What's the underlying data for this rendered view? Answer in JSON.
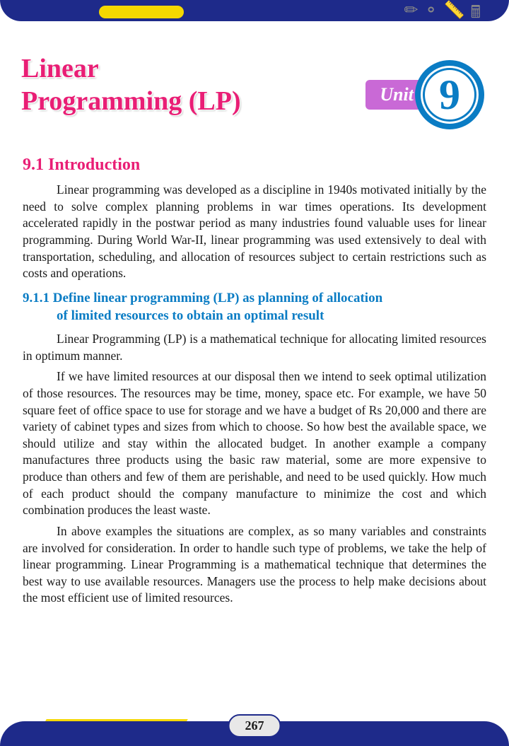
{
  "header": {
    "chapter_title_line1": "Linear",
    "chapter_title_line2": "Programming (LP)",
    "unit_label": "Unit",
    "unit_number": "9"
  },
  "sections": {
    "intro_heading": "9.1 Introduction",
    "intro_para": "Linear programming was developed as a discipline in 1940s motivated initially by the need to solve complex planning problems in war times operations. Its development accelerated rapidly in the postwar period as many industries found valuable uses for linear programming. During World War-II, linear programming was used extensively to deal with transportation, scheduling, and allocation of resources subject to certain restrictions such as costs and operations.",
    "sub_heading_line1": "9.1.1 Define linear programming (LP) as planning of allocation",
    "sub_heading_line2": "of limited resources to obtain an optimal result",
    "para2": "Linear Programming (LP) is a mathematical technique for allocating limited resources in optimum manner.",
    "para3": "If we have limited resources at our disposal then we intend to seek optimal utilization of those resources. The resources may be time, money, space etc. For example, we have 50 square feet of office space to use for storage and we have a budget of Rs 20,000 and there are variety of cabinet types and sizes from which to choose. So how best the available space, we should utilize and stay within the allocated budget. In another example a company manufactures three products using the basic raw material, some are more expensive to produce than others and few of them are perishable, and need to be used quickly. How much of each product should the company manufacture to minimize the cost and which combination produces the least waste.",
    "para4": "In above examples the situations are complex, as so many variables and constraints are involved for consideration. In order to handle such type of problems, we take the help of linear programming. Linear Programming is a mathematical technique that determines the best way to use available resources. Managers use the process to help make decisions about the most efficient use of limited resources."
  },
  "footer": {
    "page_number": "267"
  },
  "colors": {
    "primary_pink": "#e91e75",
    "primary_blue": "#0a7cc4",
    "border_navy": "#1e2a8a",
    "accent_yellow": "#f5d800",
    "unit_purple": "#c969d6",
    "text": "#1a1a1a",
    "background": "#ffffff"
  },
  "typography": {
    "title_fontsize": 38,
    "section_fontsize": 24,
    "subsection_fontsize": 19,
    "body_fontsize": 17.5,
    "unit_number_fontsize": 60
  }
}
